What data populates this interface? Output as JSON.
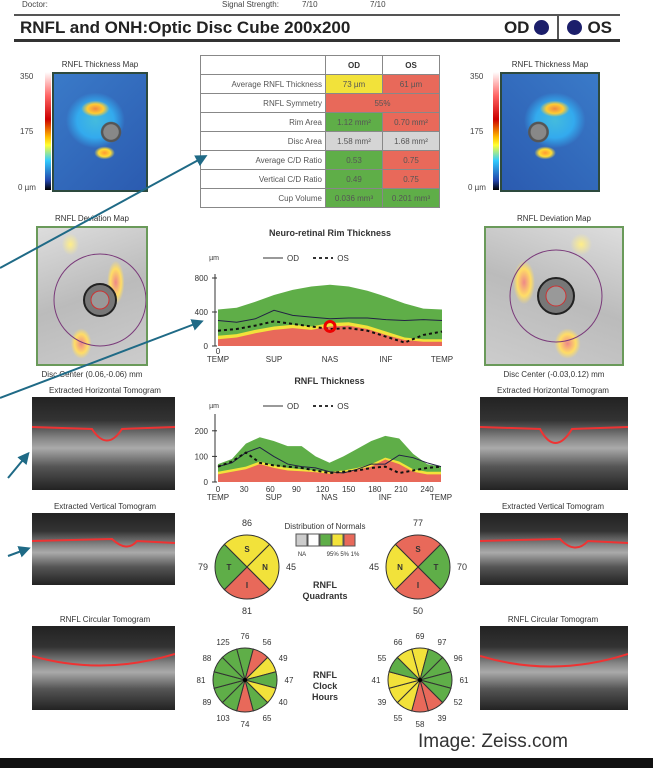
{
  "header": {
    "doctor_label": "Doctor:",
    "signal_label": "Signal Strength:",
    "signal_od": "7/10",
    "signal_os": "7/10"
  },
  "title": "RNFL and ONH:Optic Disc Cube 200x200",
  "eyes": {
    "od": "OD",
    "os": "OS",
    "dot_color": "#1c1f6b"
  },
  "maps": {
    "thickness_title": "RNFL Thickness Map",
    "scale_max": "350",
    "scale_mid": "175",
    "scale_min": "0 µm",
    "deviation_title": "RNFL Deviation Map",
    "od_disc_center": "Disc Center  (0.06,-0.06) mm",
    "os_disc_center": "Disc Center  (-0.03,0.12) mm"
  },
  "tomograms": {
    "horizontal": "Extracted Horizontal Tomogram",
    "vertical": "Extracted Vertical Tomogram",
    "circular": "RNFL Circular Tomogram"
  },
  "table": {
    "col_od": "OD",
    "col_os": "OS",
    "rows": [
      {
        "label": "Average RNFL Thickness",
        "od": "73 µm",
        "os": "61 µm",
        "od_status": "y",
        "os_status": "r"
      },
      {
        "label": "RNFL Symmetry",
        "both": "55%",
        "status": "r"
      },
      {
        "label": "Rim Area",
        "od": "1.12 mm²",
        "os": "0.70 mm²",
        "od_status": "g",
        "os_status": "r"
      },
      {
        "label": "Disc Area",
        "od": "1.58 mm²",
        "os": "1.68 mm²",
        "od_status": "gr",
        "os_status": "gr"
      },
      {
        "label": "Average C/D Ratio",
        "od": "0.53",
        "os": "0.75",
        "od_status": "g",
        "os_status": "r"
      },
      {
        "label": "Vertical C/D Ratio",
        "od": "0.49",
        "os": "0.75",
        "od_status": "g",
        "os_status": "r"
      },
      {
        "label": "Cup Volume",
        "od": "0.036 mm³",
        "os": "0.201 mm³",
        "od_status": "g",
        "os_status": "g"
      }
    ]
  },
  "legend": {
    "title": "Distribution of Normals",
    "na": "NA",
    "pcts": "95% 5% 1%",
    "colors": [
      "#cccccc",
      "#ffffff",
      "#5fae48",
      "#f2e23a",
      "#e8695a"
    ]
  },
  "quadrants": {
    "label1": "RNFL",
    "label2": "Quadrants",
    "od": [
      {
        "q": "S",
        "v": "86",
        "c": "y"
      },
      {
        "q": "N",
        "v": "45",
        "c": "y"
      },
      {
        "q": "I",
        "v": "81",
        "c": "r"
      },
      {
        "q": "T",
        "v": "79",
        "c": "g"
      }
    ],
    "os": [
      {
        "q": "S",
        "v": "77",
        "c": "r"
      },
      {
        "q": "T",
        "v": "70",
        "c": "g"
      },
      {
        "q": "I",
        "v": "50",
        "c": "r"
      },
      {
        "q": "N",
        "v": "45",
        "c": "y"
      }
    ]
  },
  "clock": {
    "label1": "RNFL",
    "label2": "Clock",
    "label3": "Hours",
    "od": {
      "values": [
        "76",
        "56",
        "49",
        "47",
        "40",
        "65",
        "74",
        "103",
        "89",
        "81",
        "88",
        "125"
      ],
      "colors": [
        "g",
        "r",
        "y",
        "g",
        "y",
        "g",
        "r",
        "g",
        "g",
        "g",
        "g",
        "g"
      ]
    },
    "os": {
      "values": [
        "69",
        "97",
        "96",
        "61",
        "52",
        "39",
        "58",
        "55",
        "39",
        "41",
        "55",
        "66"
      ],
      "colors": [
        "y",
        "g",
        "g",
        "g",
        "g",
        "r",
        "r",
        "y",
        "y",
        "y",
        "g",
        "y"
      ]
    }
  },
  "chart_data": [
    {
      "type": "area",
      "title": "Neuro-retinal Rim Thickness",
      "ylabel": "µm",
      "ylim": [
        0,
        800
      ],
      "yticks": [
        "0",
        "400",
        "800"
      ],
      "xlabels": [
        "TEMP",
        "SUP",
        "NAS",
        "INF",
        "TEMP"
      ],
      "legend": [
        "OD",
        "OS"
      ],
      "x": [
        0,
        1,
        2,
        3,
        4,
        5,
        6,
        7,
        8,
        9,
        10,
        11,
        12
      ],
      "normal_95": [
        430,
        450,
        520,
        600,
        660,
        700,
        720,
        700,
        650,
        580,
        500,
        440,
        430
      ],
      "normal_5": [
        120,
        140,
        190,
        230,
        250,
        230,
        270,
        280,
        240,
        170,
        100,
        80,
        80
      ],
      "normal_1": [
        80,
        100,
        150,
        190,
        210,
        190,
        230,
        240,
        200,
        130,
        70,
        50,
        50
      ],
      "series": [
        {
          "name": "OD",
          "values": [
            300,
            280,
            320,
            420,
            360,
            340,
            320,
            330,
            330,
            310,
            300,
            310,
            300
          ]
        },
        {
          "name": "OS",
          "values": [
            180,
            200,
            240,
            290,
            260,
            230,
            200,
            210,
            180,
            110,
            40,
            130,
            170
          ]
        }
      ]
    },
    {
      "type": "area",
      "title": "RNFL Thickness",
      "ylabel": "µm",
      "ylim": [
        0,
        250
      ],
      "xlim": [
        0,
        256
      ],
      "yticks": [
        "0",
        "100",
        "200"
      ],
      "xticks": [
        "0",
        "30",
        "60",
        "90",
        "120",
        "150",
        "180",
        "210",
        "240"
      ],
      "xlabels": [
        "TEMP",
        "SUP",
        "NAS",
        "INF",
        "TEMP"
      ],
      "legend": [
        "OD",
        "OS"
      ],
      "x": [
        0,
        16,
        32,
        48,
        64,
        80,
        96,
        112,
        128,
        144,
        160,
        176,
        192,
        208,
        224,
        240,
        256
      ],
      "normal_95": [
        70,
        90,
        150,
        175,
        160,
        140,
        140,
        100,
        75,
        100,
        130,
        160,
        180,
        170,
        110,
        70,
        60
      ],
      "normal_5": [
        40,
        50,
        60,
        80,
        65,
        55,
        50,
        45,
        40,
        45,
        55,
        70,
        95,
        80,
        50,
        40,
        40
      ],
      "normal_1": [
        30,
        40,
        50,
        70,
        55,
        45,
        42,
        38,
        32,
        38,
        48,
        60,
        88,
        70,
        40,
        30,
        30
      ],
      "series": [
        {
          "name": "OD",
          "values": [
            60,
            75,
            115,
            135,
            100,
            70,
            60,
            55,
            40,
            35,
            50,
            70,
            70,
            105,
            95,
            75,
            60
          ]
        },
        {
          "name": "OS",
          "values": [
            60,
            80,
            115,
            75,
            65,
            60,
            55,
            45,
            35,
            40,
            45,
            55,
            60,
            35,
            45,
            55,
            60
          ]
        }
      ]
    }
  ],
  "colors": {
    "g": "#5fae48",
    "y": "#f2e23a",
    "r": "#e8695a",
    "gr": "#d5d5d5"
  },
  "credit": "Image: Zeiss.com"
}
